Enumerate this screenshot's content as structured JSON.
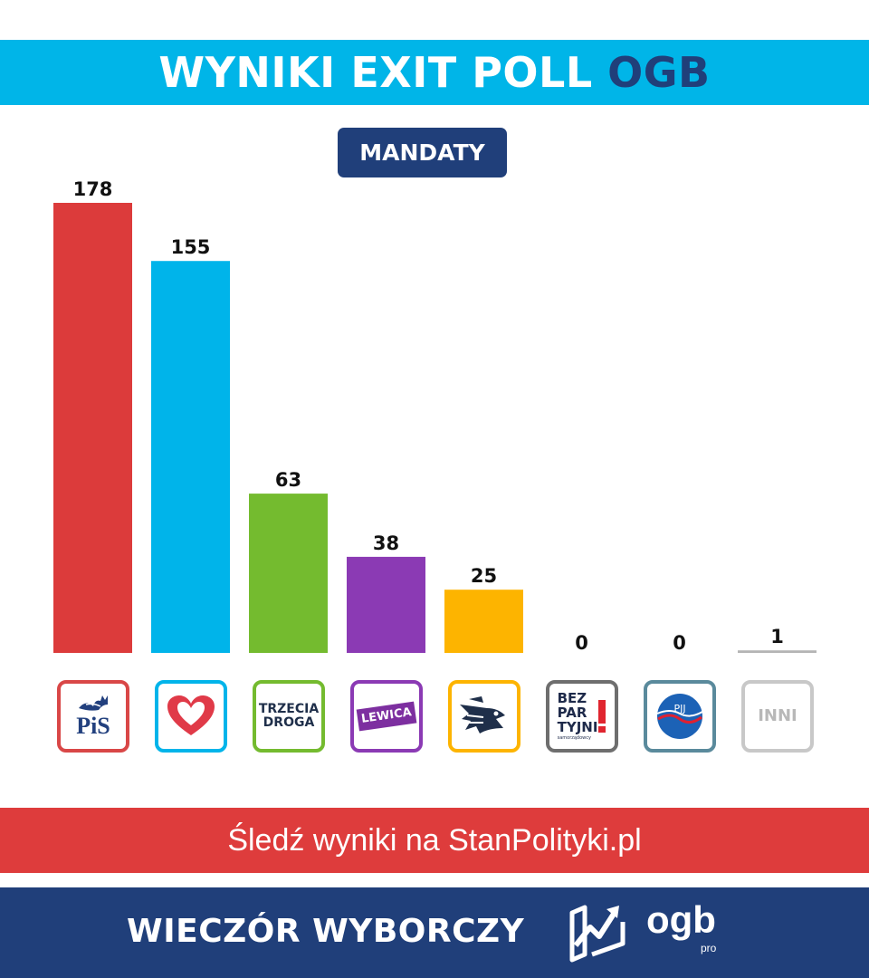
{
  "header": {
    "title": "WYNIKI EXIT POLL",
    "brand": "OGB"
  },
  "badge": {
    "label": "MANDATY"
  },
  "chart_data": {
    "type": "bar",
    "title": "WYNIKI EXIT POLL OGB",
    "subtitle": "MANDATY",
    "categories": [
      "PiS",
      "KO",
      "TRZECIA DROGA",
      "LEWICA",
      "Konfederacja",
      "BEZPARTYJNI",
      "PJJ",
      "INNI"
    ],
    "values": [
      178,
      155,
      63,
      38,
      25,
      0,
      0,
      1
    ],
    "colors": [
      "#dc3b3b",
      "#00b4ea",
      "#74bb2f",
      "#8b3ab4",
      "#fdb400",
      "#6e6e6e",
      "#5a8a9c",
      "#b5b5b5"
    ],
    "ylim": [
      0,
      178
    ],
    "grid": false,
    "legend": "none"
  },
  "logos": {
    "pis": "PiS",
    "trzecia_droga_line1": "TRZECIA",
    "trzecia_droga_line2": "DROGA",
    "lewica": "LEWICA",
    "bezpartyjni_line1": "BEZ",
    "bezpartyjni_line2": "PAR",
    "bezpartyjni_line3": "TYJNI",
    "bezpartyjni_sub": "samorządowcy",
    "pjj": "PJJ",
    "inni": "INNI"
  },
  "footer": {
    "cta": "Śledź wyniki na StanPolityki.pl",
    "event": "WIECZÓR WYBORCZY",
    "logo_word": "ogb",
    "logo_sub": "pro"
  }
}
